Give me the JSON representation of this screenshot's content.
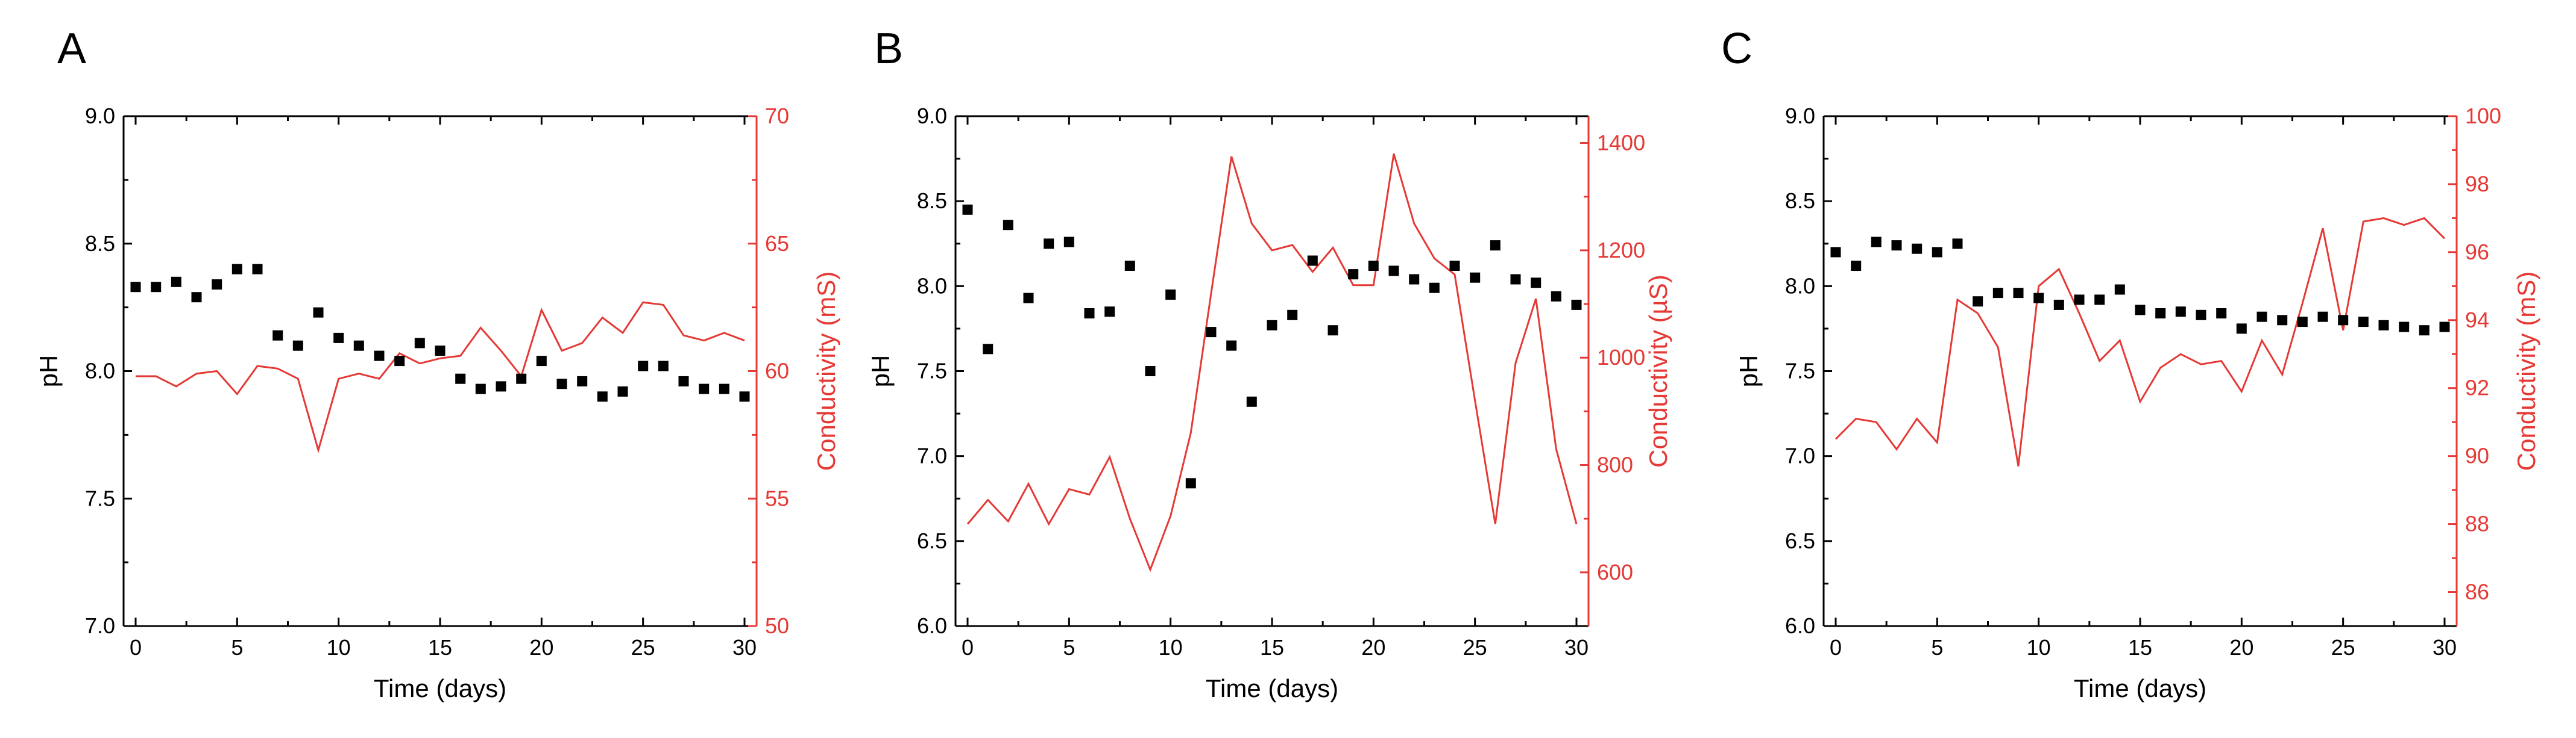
{
  "colors": {
    "ph": "#000000",
    "conductivity": "#e53935"
  },
  "chart_data": [
    {
      "panel": "A",
      "type": "scatter",
      "xlabel": "Time (days)",
      "ylabel": "pH",
      "y2label": "Conductivity (mS)",
      "xlim": [
        0,
        30
      ],
      "ylim": [
        7.0,
        9.0
      ],
      "y2lim": [
        50,
        70
      ],
      "xticks": [
        0,
        5,
        10,
        15,
        20,
        25,
        30
      ],
      "yticks": [
        "7.0",
        "7.5",
        "8.0",
        "8.5",
        "9.0"
      ],
      "y2ticks": [
        "50",
        "55",
        "60",
        "65",
        "70"
      ],
      "series": [
        {
          "axis": "left",
          "style": "square-markers",
          "x": [
            0,
            1,
            2,
            3,
            4,
            5,
            6,
            7,
            8,
            9,
            10,
            11,
            12,
            13,
            14,
            15,
            16,
            17,
            18,
            19,
            20,
            21,
            22,
            23,
            24,
            25,
            26,
            27,
            28,
            29,
            30
          ],
          "values": [
            8.33,
            8.33,
            8.35,
            8.29,
            8.34,
            8.4,
            8.4,
            8.14,
            8.1,
            8.23,
            8.13,
            8.1,
            8.06,
            8.04,
            8.11,
            8.08,
            7.97,
            7.93,
            7.94,
            7.97,
            8.04,
            7.95,
            7.96,
            7.9,
            7.92,
            8.02,
            8.02,
            7.96,
            7.93,
            7.93,
            7.9
          ]
        },
        {
          "axis": "right",
          "style": "line",
          "x": [
            0,
            1,
            2,
            3,
            4,
            5,
            6,
            7,
            8,
            9,
            10,
            11,
            12,
            13,
            14,
            15,
            16,
            17,
            18,
            19,
            20,
            21,
            22,
            23,
            24,
            25,
            26,
            27,
            28,
            29,
            30
          ],
          "values": [
            59.8,
            59.8,
            59.4,
            59.9,
            60.0,
            59.1,
            60.2,
            60.1,
            59.7,
            56.9,
            59.7,
            59.9,
            59.7,
            60.7,
            60.3,
            60.5,
            60.6,
            61.7,
            60.8,
            59.8,
            62.4,
            60.8,
            61.1,
            62.1,
            61.5,
            62.7,
            62.6,
            61.4,
            61.2,
            61.5,
            61.2
          ]
        }
      ]
    },
    {
      "panel": "B",
      "type": "scatter",
      "xlabel": "Time (days)",
      "ylabel": "pH",
      "y2label": "Conductivity (µS)",
      "xlim": [
        0,
        30
      ],
      "ylim": [
        6.0,
        9.0
      ],
      "y2lim": [
        500,
        1450
      ],
      "xticks": [
        0,
        5,
        10,
        15,
        20,
        25,
        30
      ],
      "yticks": [
        "6.0",
        "6.5",
        "7.0",
        "7.5",
        "8.0",
        "8.5",
        "9.0"
      ],
      "y2ticks": [
        "600",
        "800",
        "1000",
        "1200",
        "1400"
      ],
      "series": [
        {
          "axis": "left",
          "style": "square-markers",
          "x": [
            0,
            1,
            2,
            3,
            4,
            5,
            6,
            7,
            8,
            9,
            10,
            11,
            12,
            13,
            14,
            15,
            16,
            17,
            18,
            19,
            20,
            21,
            22,
            23,
            24,
            25,
            26,
            27,
            28,
            29,
            30
          ],
          "values": [
            8.45,
            7.63,
            8.36,
            7.93,
            8.25,
            8.26,
            7.84,
            7.85,
            8.12,
            7.5,
            7.95,
            6.84,
            7.73,
            7.65,
            7.32,
            7.77,
            7.83,
            8.15,
            7.74,
            8.07,
            8.12,
            8.09,
            8.04,
            7.99,
            8.12,
            8.05,
            8.24,
            8.04,
            8.02,
            7.94,
            7.89
          ]
        },
        {
          "axis": "right",
          "style": "line",
          "x": [
            0,
            1,
            2,
            3,
            4,
            5,
            6,
            7,
            8,
            9,
            10,
            11,
            12,
            13,
            14,
            15,
            16,
            17,
            18,
            19,
            20,
            21,
            22,
            23,
            24,
            25,
            26,
            27,
            28,
            29,
            30
          ],
          "values": [
            690,
            735,
            695,
            765,
            690,
            755,
            745,
            815,
            700,
            605,
            705,
            860,
            1120,
            1375,
            1250,
            1200,
            1210,
            1160,
            1205,
            1135,
            1135,
            1380,
            1250,
            1185,
            1155,
            920,
            690,
            990,
            1110,
            830,
            690
          ]
        }
      ]
    },
    {
      "panel": "C",
      "type": "scatter",
      "xlabel": "Time (days)",
      "ylabel": "pH",
      "y2label": "Conductivity (mS)",
      "xlim": [
        0,
        30
      ],
      "ylim": [
        6.0,
        9.0
      ],
      "y2lim": [
        85,
        100
      ],
      "xticks": [
        0,
        5,
        10,
        15,
        20,
        25,
        30
      ],
      "yticks": [
        "6.0",
        "6.5",
        "7.0",
        "7.5",
        "8.0",
        "8.5",
        "9.0"
      ],
      "y2ticks": [
        "86",
        "88",
        "90",
        "92",
        "94",
        "96",
        "98",
        "100"
      ],
      "series": [
        {
          "axis": "left",
          "style": "square-markers",
          "x": [
            0,
            1,
            2,
            3,
            4,
            5,
            6,
            7,
            8,
            9,
            10,
            11,
            12,
            13,
            14,
            15,
            16,
            17,
            18,
            19,
            20,
            21,
            22,
            23,
            24,
            25,
            26,
            27,
            28,
            29,
            30
          ],
          "values": [
            8.2,
            8.12,
            8.26,
            8.24,
            8.22,
            8.2,
            8.25,
            7.91,
            7.96,
            7.96,
            7.93,
            7.89,
            7.92,
            7.92,
            7.98,
            7.86,
            7.84,
            7.85,
            7.83,
            7.84,
            7.75,
            7.82,
            7.8,
            7.79,
            7.82,
            7.8,
            7.79,
            7.77,
            7.76,
            7.74,
            7.76
          ]
        },
        {
          "axis": "right",
          "style": "line",
          "x": [
            0,
            1,
            2,
            3,
            4,
            5,
            6,
            7,
            8,
            9,
            10,
            11,
            12,
            13,
            14,
            15,
            16,
            17,
            18,
            19,
            20,
            21,
            22,
            23,
            24,
            25,
            26,
            27,
            28,
            29,
            30
          ],
          "values": [
            90.5,
            91.1,
            91.0,
            90.2,
            91.1,
            90.4,
            94.6,
            94.2,
            93.2,
            89.7,
            95.0,
            95.5,
            94.2,
            92.8,
            93.4,
            91.6,
            92.6,
            93.0,
            92.7,
            92.8,
            91.9,
            93.4,
            92.4,
            94.5,
            96.7,
            93.7,
            96.9,
            97.0,
            96.8,
            97.0,
            96.4
          ]
        }
      ]
    }
  ]
}
